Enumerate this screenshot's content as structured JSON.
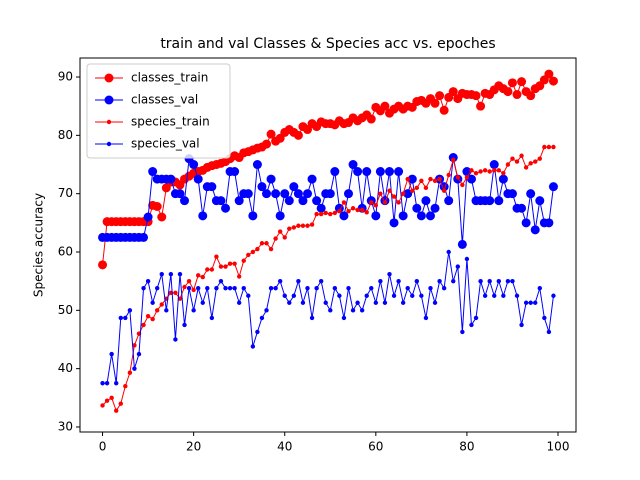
{
  "chart_data": {
    "type": "line",
    "title": "train and val Classes & Species acc vs. epoches",
    "y_label": "Species accuracy",
    "x": [
      0,
      1,
      2,
      3,
      4,
      5,
      6,
      7,
      8,
      9,
      10,
      11,
      12,
      13,
      14,
      15,
      16,
      17,
      18,
      19,
      20,
      21,
      22,
      23,
      24,
      25,
      26,
      27,
      28,
      29,
      30,
      31,
      32,
      33,
      34,
      35,
      36,
      37,
      38,
      39,
      40,
      41,
      42,
      43,
      44,
      45,
      46,
      47,
      48,
      49,
      50,
      51,
      52,
      53,
      54,
      55,
      56,
      57,
      58,
      59,
      60,
      61,
      62,
      63,
      64,
      65,
      66,
      67,
      68,
      69,
      70,
      71,
      72,
      73,
      74,
      75,
      76,
      77,
      78,
      79,
      80,
      81,
      82,
      83,
      84,
      85,
      86,
      87,
      88,
      89,
      90,
      91,
      92,
      93,
      94,
      95,
      96,
      97,
      98,
      99
    ],
    "series": [
      {
        "name": "classes_train",
        "color": "#ff0000",
        "marker": "large",
        "values": [
          57.8,
          65.2,
          65.2,
          65.2,
          65.2,
          65.2,
          65.2,
          65.2,
          65.2,
          65.2,
          65.2,
          68,
          67.8,
          66,
          71,
          72,
          72,
          71.5,
          72.5,
          73,
          73.5,
          73.8,
          74,
          74.5,
          74.8,
          75,
          75.2,
          75.5,
          76,
          76.5,
          76.2,
          77,
          77.2,
          77.5,
          77.8,
          78,
          78.5,
          80.2,
          79,
          79.5,
          80.5,
          81,
          80.5,
          80,
          81.5,
          81,
          82,
          81.5,
          82.3,
          82,
          82,
          81.8,
          82.5,
          82,
          82.2,
          83,
          82.5,
          83,
          83.5,
          82.8,
          84.8,
          84.2,
          85,
          83.8,
          84.5,
          85,
          84.5,
          85,
          84.8,
          85.8,
          86,
          85.5,
          86.3,
          85.5,
          86.8,
          84.3,
          86.5,
          87.5,
          86.3,
          87.2,
          87,
          87,
          86.8,
          85,
          87.2,
          87,
          87.8,
          88.5,
          88,
          87.5,
          89,
          87,
          89.2,
          87.5,
          86.8,
          88,
          88.5,
          89.5,
          90.5,
          89.3
        ]
      },
      {
        "name": "classes_val",
        "color": "#0000ff",
        "marker": "large",
        "values": [
          62.5,
          62.5,
          62.5,
          62.5,
          62.5,
          62.5,
          62.5,
          62.5,
          62.5,
          62.5,
          66,
          73.8,
          72.5,
          72.5,
          72.5,
          72.5,
          70,
          70,
          68.8,
          76,
          75,
          72.5,
          66.2,
          71.2,
          71.2,
          68.8,
          68.8,
          67.5,
          73.8,
          73.8,
          68.8,
          70,
          70,
          66.2,
          75,
          71.2,
          70,
          72.5,
          70,
          66.2,
          70,
          68.8,
          71.2,
          70,
          68.8,
          70,
          72.5,
          68.8,
          67.5,
          70,
          70,
          73.8,
          67.5,
          66.2,
          70,
          75,
          73.8,
          67.5,
          73.8,
          68.8,
          66.2,
          73.8,
          68.8,
          73.8,
          65,
          73.8,
          66.2,
          70,
          72.5,
          67.5,
          66.2,
          68.8,
          66.2,
          67.5,
          72.5,
          71.2,
          68.8,
          76.2,
          72.5,
          61.3,
          73.8,
          72.5,
          68.8,
          68.8,
          68.8,
          68.8,
          75,
          68.8,
          72.5,
          70,
          70,
          67.5,
          67.5,
          65,
          70,
          63.8,
          68.8,
          65,
          65,
          71.2
        ]
      },
      {
        "name": "species_train",
        "color": "#ff0000",
        "marker": "small",
        "values": [
          33.7,
          34.5,
          35,
          32.8,
          34,
          37,
          39.3,
          44,
          46,
          47.5,
          49,
          48.5,
          50,
          51,
          52,
          53,
          53,
          52,
          54,
          55,
          53.5,
          56,
          55.7,
          57,
          57,
          59.2,
          57.5,
          57.5,
          58,
          58,
          55.8,
          58.5,
          59.5,
          60,
          60.5,
          61.5,
          61.5,
          60.5,
          62.3,
          63.5,
          62.5,
          64,
          64.2,
          64.5,
          64.5,
          64.5,
          64.7,
          66.5,
          66.5,
          66.7,
          66.5,
          66.7,
          67,
          68.5,
          67,
          67.5,
          67.2,
          67.2,
          66.8,
          68.5,
          68,
          70,
          68.5,
          70.5,
          69.5,
          68.5,
          70,
          72.5,
          70.5,
          71,
          72.2,
          71,
          72.5,
          72.2,
          72.5,
          70.5,
          73.2,
          75.8,
          72.8,
          71.5,
          72.8,
          74,
          73.5,
          73.8,
          74,
          73.8,
          74,
          74,
          73.5,
          75,
          76,
          75.5,
          76.5,
          74.5,
          75.2,
          75.5,
          76,
          78,
          78,
          78
        ]
      },
      {
        "name": "species_val",
        "color": "#0000ff",
        "marker": "small",
        "values": [
          37.5,
          37.5,
          42.5,
          37.5,
          48.7,
          48.7,
          50,
          40,
          42.5,
          53.8,
          55,
          51.3,
          53.8,
          56.2,
          50,
          56.2,
          45,
          56.2,
          47.5,
          53.8,
          50,
          53.8,
          51.3,
          53.8,
          48.7,
          53.8,
          55,
          53.8,
          53.8,
          53.8,
          51.3,
          53.8,
          52.5,
          43.8,
          46.3,
          48.7,
          50,
          53.8,
          53.8,
          55,
          52.5,
          51.3,
          52.5,
          55,
          51.3,
          53.8,
          48.7,
          53.8,
          55,
          51.3,
          50,
          53.8,
          52.5,
          48.7,
          53.8,
          50,
          51.3,
          50,
          52.5,
          53.8,
          51.3,
          55,
          51.3,
          56.2,
          52.5,
          55,
          51.3,
          53.8,
          52.5,
          55,
          52.5,
          48.7,
          53.8,
          51.3,
          55,
          53.8,
          60,
          55,
          57.5,
          46.3,
          58.8,
          47.5,
          48.7,
          55,
          52.5,
          55,
          52.5,
          55,
          52.5,
          55,
          55,
          52.5,
          47.5,
          51.3,
          51.3,
          51.3,
          53.8,
          48.7,
          46.3,
          52.5
        ]
      }
    ],
    "xlim": [
      -4.95,
      103.95
    ],
    "ylim": [
      29.14,
      93.26
    ],
    "xticks": [
      0,
      20,
      40,
      60,
      80,
      100
    ],
    "yticks": [
      30,
      40,
      50,
      60,
      70,
      80,
      90
    ],
    "legend": "upper left"
  }
}
